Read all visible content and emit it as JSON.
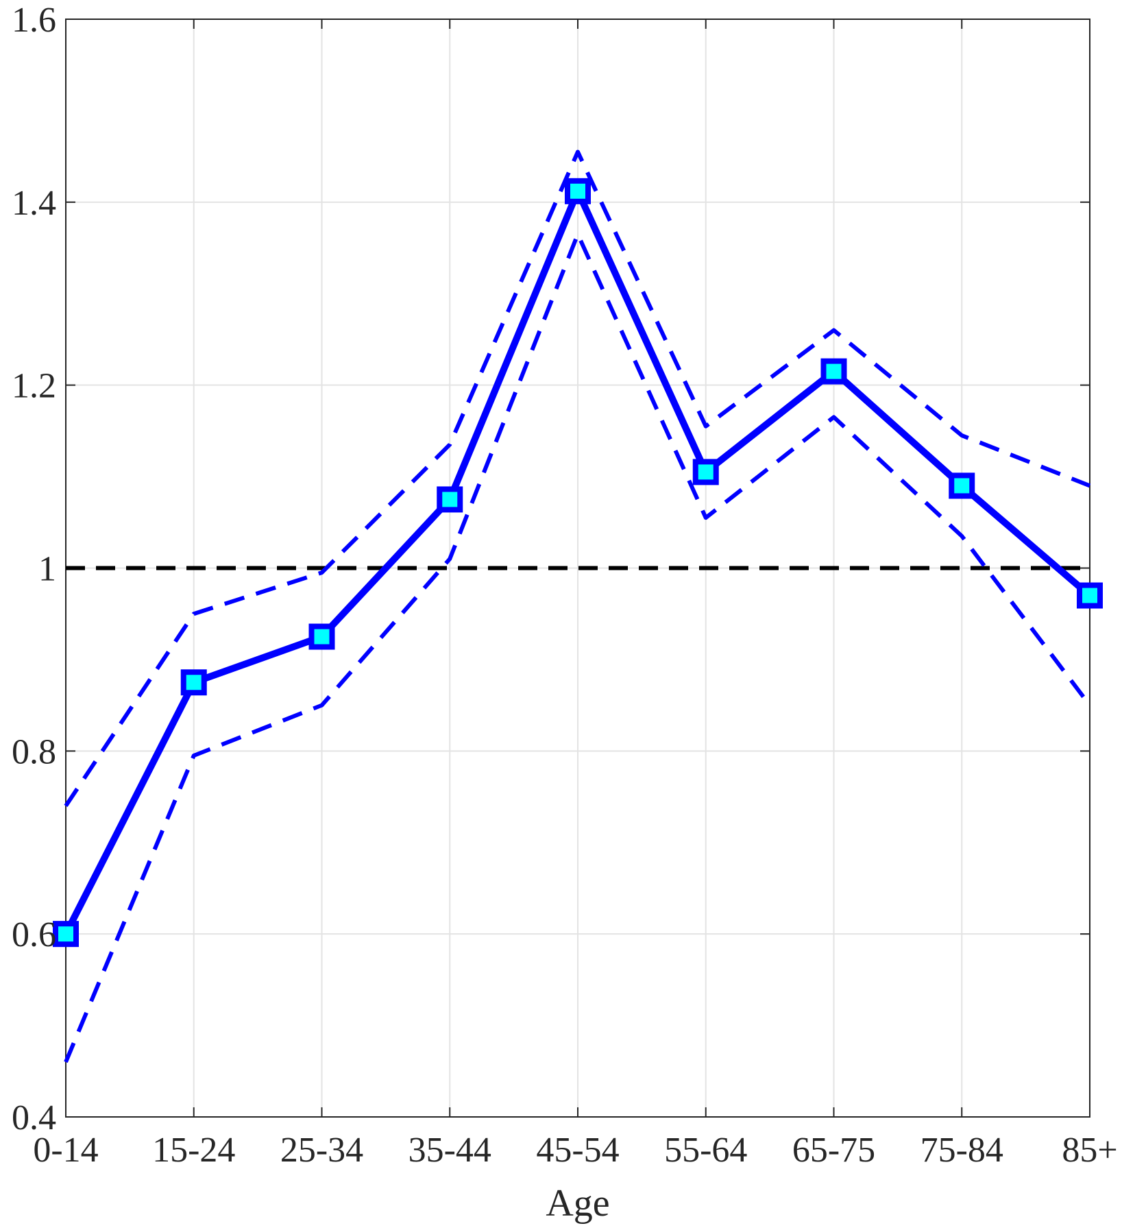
{
  "chart_data": {
    "type": "line",
    "title": "",
    "xlabel": "Age",
    "ylabel": "",
    "categories": [
      "0-14",
      "15-24",
      "25-34",
      "35-44",
      "45-54",
      "55-64",
      "65-75",
      "75-84",
      "85+"
    ],
    "ylim": [
      0.4,
      1.6
    ],
    "yticks": [
      "0.4",
      "0.6",
      "0.8",
      "1",
      "1.2",
      "1.4",
      "1.6"
    ],
    "grid": true,
    "series": [
      {
        "role": "estimate",
        "style": "solid",
        "marker": "square",
        "color": "#0000ff",
        "marker_fill": "#00ffff",
        "values": [
          0.6,
          0.875,
          0.925,
          1.075,
          1.412,
          1.105,
          1.215,
          1.09,
          0.97
        ]
      },
      {
        "role": "upper-bound",
        "style": "dashed",
        "color": "#0000ff",
        "values": [
          0.74,
          0.95,
          0.995,
          1.135,
          1.455,
          1.155,
          1.26,
          1.145,
          1.09
        ]
      },
      {
        "role": "lower-bound",
        "style": "dashed",
        "color": "#0000ff",
        "values": [
          0.46,
          0.795,
          0.85,
          1.01,
          1.365,
          1.055,
          1.165,
          1.035,
          0.85
        ]
      }
    ],
    "reference_line": {
      "y": 1,
      "style": "dashed",
      "color": "#000000"
    }
  }
}
